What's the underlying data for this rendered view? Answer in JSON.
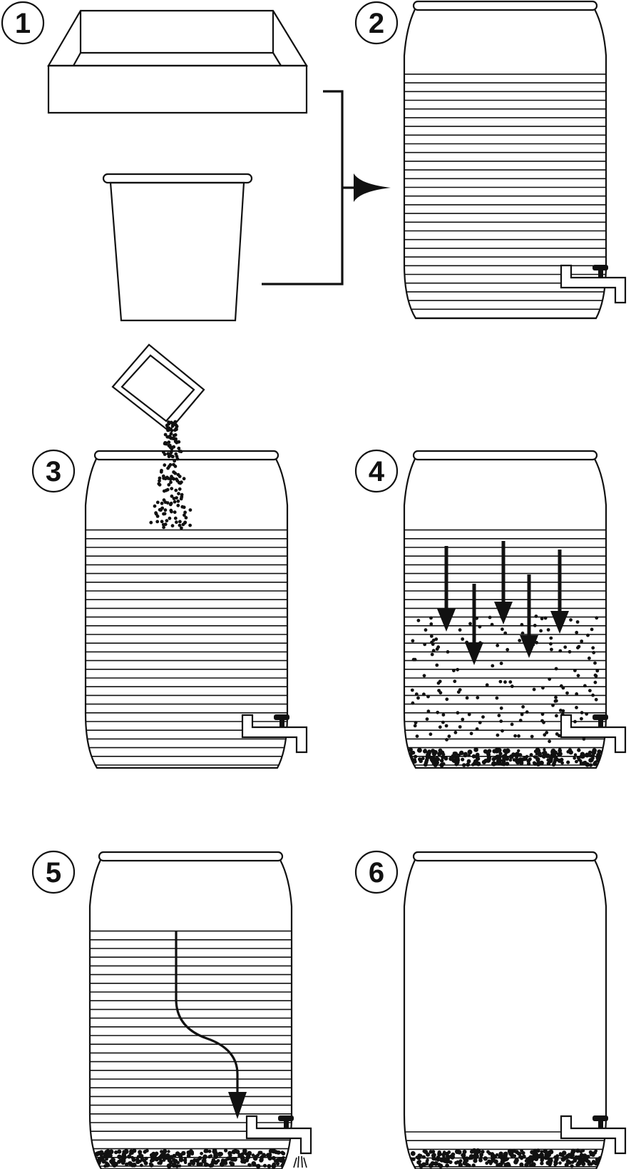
{
  "diagram": {
    "title": "",
    "steps": [
      {
        "number": "1",
        "items": [
          "tray",
          "bucket"
        ],
        "arrow": "bracket-right"
      },
      {
        "number": "2",
        "container": "barrel-with-tap",
        "water_fraction": 0.79,
        "sediment": false
      },
      {
        "number": "3",
        "container": "barrel-with-tap",
        "water_fraction": 0.77,
        "sediment": false,
        "adding": "powder-packet"
      },
      {
        "number": "4",
        "container": "barrel-with-tap",
        "water_fraction": 0.77,
        "sediment": true,
        "particles_settling": true,
        "down_arrows": 5
      },
      {
        "number": "5",
        "container": "barrel-with-tap",
        "water_fraction": 0.77,
        "sediment": true,
        "flow_arrow_to_tap": true,
        "tap_dripping": true
      },
      {
        "number": "6",
        "container": "barrel-with-tap",
        "water_fraction": 0.12,
        "sediment": true
      }
    ]
  },
  "colors": {
    "ink": "#111111",
    "background": "#ffffff"
  }
}
